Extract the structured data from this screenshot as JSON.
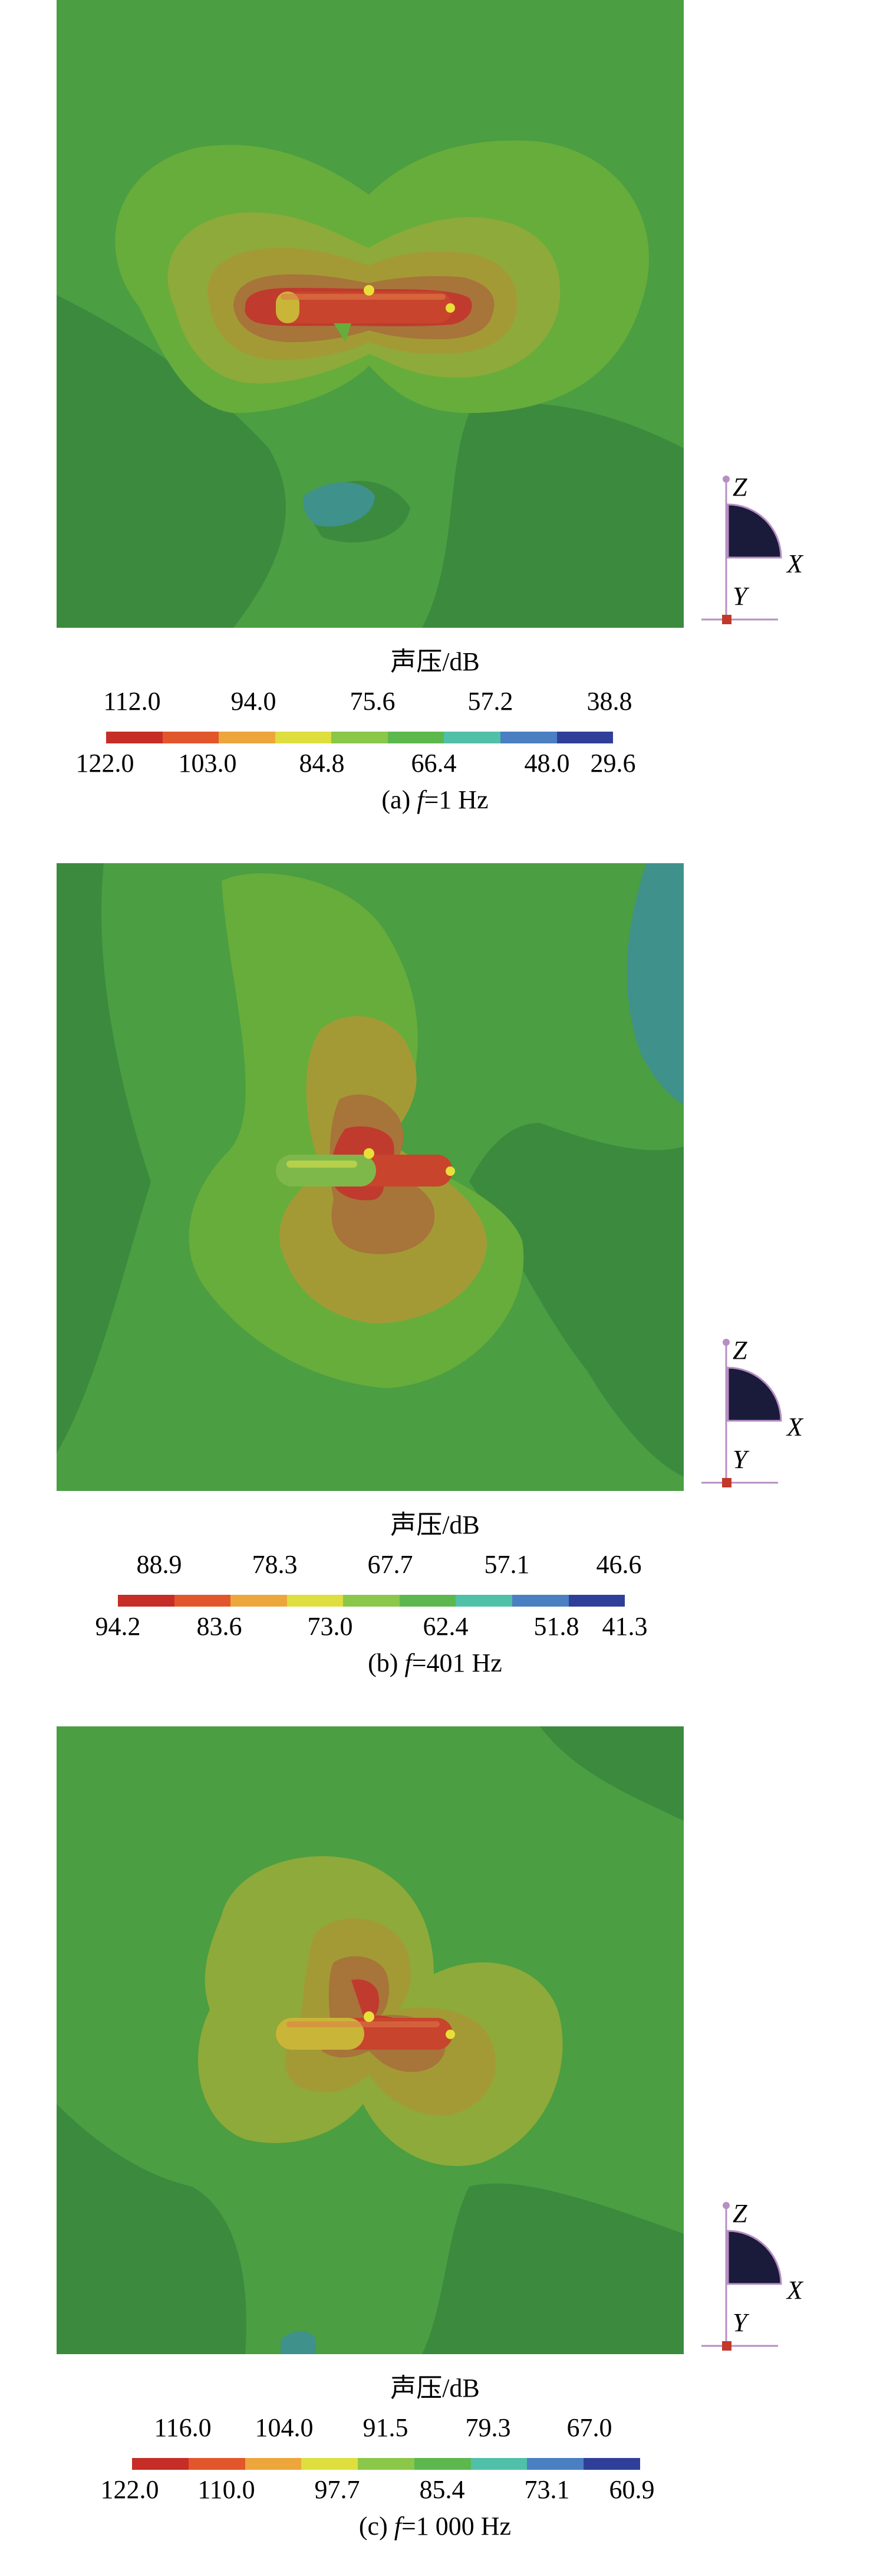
{
  "colors": {
    "bg_green": "#4b9e42",
    "dark_green": "#3c8a3e",
    "light_green": "#67ad3c",
    "yellow_green": "#8eaa3a",
    "olive": "#a39a36",
    "brown": "#a7743a",
    "red": "#c03a2e",
    "teal": "#3f918c",
    "gold": "#d8c432",
    "scale": [
      "#c62d27",
      "#e2562c",
      "#eda63c",
      "#dede3e",
      "#8bc748",
      "#5cb84c",
      "#51c0a8",
      "#4a7fc2",
      "#2f3f99"
    ]
  },
  "icons": [
    "coordinate-axes-icon",
    "submarine-model-icon"
  ],
  "panels": [
    {
      "id": "a",
      "legend_title": "声压/dB",
      "upper_ticks": [
        "112.0",
        "94.0",
        "75.6",
        "57.2",
        "38.8"
      ],
      "lower_ticks": [
        "122.0",
        "103.0",
        "84.8",
        "66.4",
        "48.0",
        "29.6"
      ],
      "caption_prefix": "(a) ",
      "caption_var": "f",
      "caption_value": "=1 Hz",
      "axis_z": "Z",
      "axis_x": "X",
      "axis_y": "Y"
    },
    {
      "id": "b",
      "legend_title": "声压/dB",
      "upper_ticks": [
        "88.9",
        "78.3",
        "67.7",
        "57.1",
        "46.6"
      ],
      "lower_ticks": [
        "94.2",
        "83.6",
        "73.0",
        "62.4",
        "51.8",
        "41.3"
      ],
      "caption_prefix": "(b) ",
      "caption_var": "f",
      "caption_value": "=401 Hz",
      "axis_z": "Z",
      "axis_x": "X",
      "axis_y": "Y"
    },
    {
      "id": "c",
      "legend_title": "声压/dB",
      "upper_ticks": [
        "116.0",
        "104.0",
        "91.5",
        "79.3",
        "67.0"
      ],
      "lower_ticks": [
        "122.0",
        "110.0",
        "97.7",
        "85.4",
        "73.1",
        "60.9"
      ],
      "caption_prefix": "(c) ",
      "caption_var": "f",
      "caption_value": "=1 000 Hz",
      "axis_z": "Z",
      "axis_x": "X",
      "axis_y": "Y"
    }
  ]
}
